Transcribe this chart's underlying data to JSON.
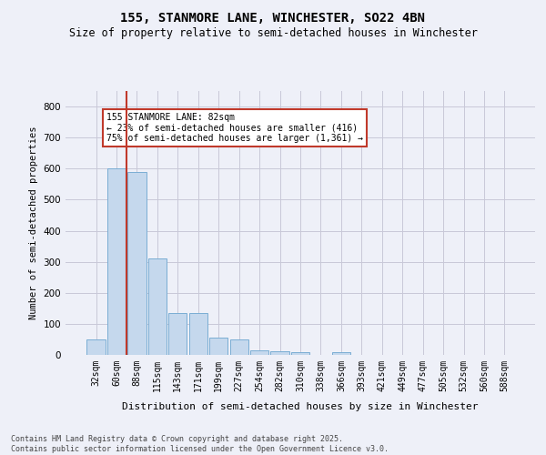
{
  "title1": "155, STANMORE LANE, WINCHESTER, SO22 4BN",
  "title2": "Size of property relative to semi-detached houses in Winchester",
  "xlabel": "Distribution of semi-detached houses by size in Winchester",
  "ylabel": "Number of semi-detached properties",
  "categories": [
    "32sqm",
    "60sqm",
    "88sqm",
    "115sqm",
    "143sqm",
    "171sqm",
    "199sqm",
    "227sqm",
    "254sqm",
    "282sqm",
    "310sqm",
    "338sqm",
    "366sqm",
    "393sqm",
    "421sqm",
    "449sqm",
    "477sqm",
    "505sqm",
    "532sqm",
    "560sqm",
    "588sqm"
  ],
  "values": [
    50,
    600,
    590,
    310,
    135,
    135,
    55,
    50,
    15,
    12,
    10,
    0,
    10,
    0,
    0,
    0,
    0,
    0,
    0,
    0,
    0
  ],
  "bar_color": "#c5d8ed",
  "bar_edge_color": "#7aadd4",
  "grid_color": "#c8c8d8",
  "background_color": "#eef0f8",
  "vline_color": "#c0392b",
  "vline_x": 1.5,
  "annotation_text": "155 STANMORE LANE: 82sqm\n← 23% of semi-detached houses are smaller (416)\n75% of semi-detached houses are larger (1,361) →",
  "annotation_box_color": "#ffffff",
  "annotation_box_edge": "#c0392b",
  "footer1": "Contains HM Land Registry data © Crown copyright and database right 2025.",
  "footer2": "Contains public sector information licensed under the Open Government Licence v3.0.",
  "ylim": [
    0,
    850
  ],
  "yticks": [
    0,
    100,
    200,
    300,
    400,
    500,
    600,
    700,
    800
  ],
  "title1_fontsize": 10,
  "title2_fontsize": 8.5
}
